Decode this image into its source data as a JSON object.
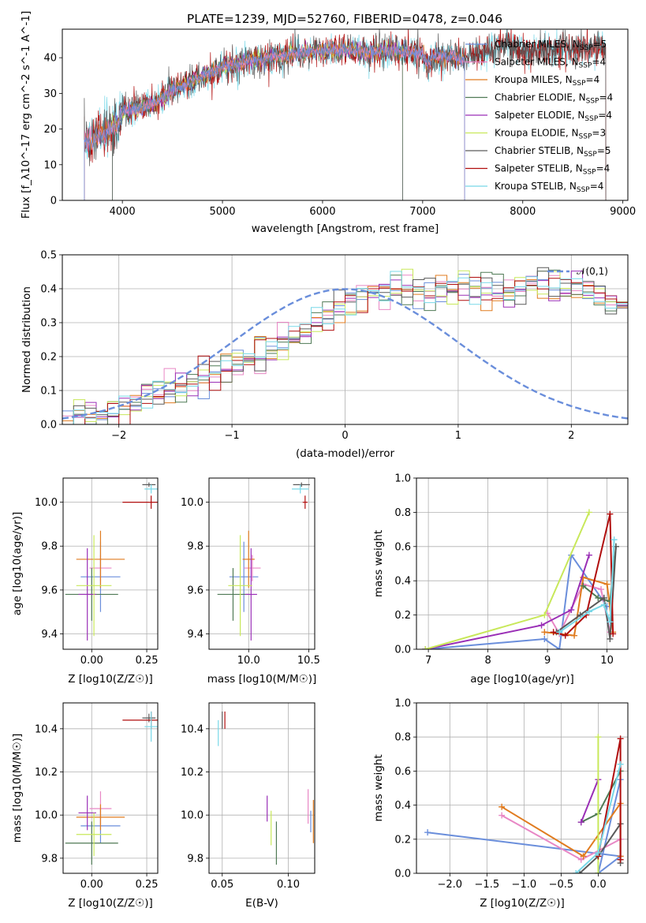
{
  "figure": {
    "title": "PLATE=1239, MJD=52760, FIBERID=0478, z=0.046"
  },
  "colors": {
    "Chabrier MILES": "#6a8edb",
    "Salpeter MILES": "#e887c5",
    "Kroupa MILES": "#e07b1f",
    "Chabrier ELODIE": "#4f7a55",
    "Salpeter ELODIE": "#9a2fb6",
    "Kroupa ELODIE": "#c8e85a",
    "Chabrier STELIB": "#5a5a5a",
    "Salpeter STELIB": "#b00d0d",
    "Kroupa STELIB": "#78d8e8"
  },
  "chart_data": [
    {
      "id": "spectrum",
      "type": "line",
      "xlabel": "wavelength [Angstrom, rest frame]",
      "ylabel": "Flux [f_λ10^-17 erg cm^-2 s^-1 A^-1]",
      "xlim": [
        3400,
        9050
      ],
      "ylim": [
        0,
        48
      ],
      "xticks": [
        4000,
        5000,
        6000,
        7000,
        8000,
        9000
      ],
      "yticks": [
        0,
        10,
        20,
        30,
        40
      ],
      "grid": false,
      "legend_position": "right",
      "legend": [
        {
          "model": "Chabrier MILES",
          "n_ssp": "5"
        },
        {
          "model": "Salpeter MILES",
          "n_ssp": "4"
        },
        {
          "model": "Kroupa MILES",
          "n_ssp": "4"
        },
        {
          "model": "Chabrier ELODIE",
          "n_ssp": "4"
        },
        {
          "model": "Salpeter ELODIE",
          "n_ssp": "4"
        },
        {
          "model": "Kroupa ELODIE",
          "n_ssp": "3"
        },
        {
          "model": "Chabrier STELIB",
          "n_ssp": "5"
        },
        {
          "model": "Salpeter STELIB",
          "n_ssp": "4"
        },
        {
          "model": "Kroupa STELIB",
          "n_ssp": "4"
        }
      ],
      "data_continuum": [
        [
          3620,
          16
        ],
        [
          3700,
          17
        ],
        [
          3800,
          18
        ],
        [
          3900,
          20
        ],
        [
          3950,
          21
        ],
        [
          4000,
          25
        ],
        [
          4100,
          25.5
        ],
        [
          4200,
          26
        ],
        [
          4300,
          27
        ],
        [
          4400,
          28.5
        ],
        [
          4500,
          31
        ],
        [
          4600,
          32
        ],
        [
          4700,
          33.5
        ],
        [
          4800,
          35
        ],
        [
          4900,
          36
        ],
        [
          5000,
          37.5
        ],
        [
          5100,
          38
        ],
        [
          5200,
          38.5
        ],
        [
          5300,
          39.5
        ],
        [
          5400,
          39.5
        ],
        [
          5500,
          40.5
        ],
        [
          5600,
          40.5
        ],
        [
          5700,
          41
        ],
        [
          5800,
          41.5
        ],
        [
          5900,
          41.5
        ],
        [
          6000,
          42
        ],
        [
          6100,
          42
        ],
        [
          6200,
          42
        ],
        [
          6300,
          42
        ],
        [
          6400,
          41.5
        ],
        [
          6500,
          41.5
        ],
        [
          6600,
          42
        ],
        [
          6700,
          42
        ],
        [
          6800,
          41.5
        ],
        [
          6900,
          41.5
        ],
        [
          7000,
          41
        ],
        [
          7050,
          38
        ],
        [
          7100,
          40
        ],
        [
          7200,
          40.5
        ],
        [
          7300,
          40.5
        ],
        [
          7400,
          39.5
        ],
        [
          7500,
          40.5
        ],
        [
          7600,
          41
        ],
        [
          7700,
          43
        ],
        [
          7800,
          44
        ],
        [
          7900,
          43
        ],
        [
          8000,
          42
        ],
        [
          8100,
          42
        ],
        [
          8200,
          42
        ],
        [
          8300,
          42.5
        ],
        [
          8400,
          43
        ],
        [
          8500,
          43
        ],
        [
          8600,
          43
        ],
        [
          8700,
          43
        ],
        [
          8800,
          43
        ]
      ],
      "model_wavelength_coverage": {
        "MILES": [
          3620,
          7420
        ],
        "ELODIE": [
          3900,
          6800
        ],
        "STELIB": [
          3620,
          8830
        ]
      }
    },
    {
      "id": "residuals",
      "type": "histogram",
      "xlabel": "(data-model)/error",
      "ylabel": "Normed distribution",
      "xlim": [
        -2.5,
        2.5
      ],
      "ylim": [
        0,
        0.5
      ],
      "xticks": [
        -2,
        -1,
        0,
        1,
        2
      ],
      "yticks": [
        0.0,
        0.1,
        0.2,
        0.3,
        0.4,
        0.5
      ],
      "grid": true,
      "legend_position": "top-right",
      "reference_curve": {
        "label": "𝒩(0,1)",
        "mean": 0,
        "sigma": 1,
        "color": "#6a8edb"
      },
      "bin_width": 0.1,
      "bin_start": -2.5,
      "base_profile": [
        0.03,
        0.03,
        0.035,
        0.04,
        0.045,
        0.05,
        0.06,
        0.08,
        0.09,
        0.1,
        0.11,
        0.12,
        0.13,
        0.15,
        0.16,
        0.18,
        0.19,
        0.21,
        0.22,
        0.24,
        0.26,
        0.28,
        0.3,
        0.32,
        0.34,
        0.36,
        0.38,
        0.39,
        0.39,
        0.4,
        0.4,
        0.39,
        0.38,
        0.4,
        0.41,
        0.41,
        0.4,
        0.4,
        0.39,
        0.38,
        0.4,
        0.42,
        0.42,
        0.41,
        0.4,
        0.4,
        0.39,
        0.38,
        0.36,
        0.35,
        0.34,
        0.32,
        0.31,
        0.29,
        0.27,
        0.26,
        0.24,
        0.22,
        0.21,
        0.19,
        0.18,
        0.17,
        0.16,
        0.15,
        0.14,
        0.13,
        0.12,
        0.11,
        0.1,
        0.09,
        0.08,
        0.07,
        0.06,
        0.05,
        0.05,
        0.04,
        0.035,
        0.03,
        0.03,
        0.025,
        0.02,
        0.02,
        0.02,
        0.02,
        0.02,
        0.02,
        0.02,
        0.02,
        0.02,
        0.02,
        0.02,
        0.02,
        0.02,
        0.02,
        0.02,
        0.02,
        0.02,
        0.02,
        0.02,
        0.02
      ]
    },
    {
      "id": "age-vs-metallicity",
      "type": "scatter",
      "xlabel": "Z [log10(Z/Z☉)]",
      "ylabel": "age [log10(age/yr)]",
      "xlim": [
        -0.13,
        0.3
      ],
      "ylim": [
        9.33,
        10.11
      ],
      "xticks": [
        0.0,
        0.25
      ],
      "yticks": [
        9.4,
        9.6,
        9.8,
        10.0
      ],
      "grid": true,
      "points": [
        {
          "model": "Chabrier MILES",
          "x": 0.04,
          "y": 9.66,
          "xerr": 0.09,
          "yerr": 0.16
        },
        {
          "model": "Salpeter MILES",
          "x": 0.04,
          "y": 9.7,
          "xerr": 0.05,
          "yerr": 0.06
        },
        {
          "model": "Kroupa MILES",
          "x": 0.04,
          "y": 9.74,
          "xerr": 0.11,
          "yerr": 0.13
        },
        {
          "model": "Chabrier ELODIE",
          "x": 0.0,
          "y": 9.58,
          "xerr": 0.12,
          "yerr": 0.12
        },
        {
          "model": "Salpeter ELODIE",
          "x": -0.02,
          "y": 9.58,
          "xerr": 0.04,
          "yerr": 0.21
        },
        {
          "model": "Kroupa ELODIE",
          "x": 0.01,
          "y": 9.62,
          "xerr": 0.08,
          "yerr": 0.23
        },
        {
          "model": "Chabrier STELIB",
          "x": 0.26,
          "y": 10.08,
          "xerr": 0.03,
          "yerr": 0.01
        },
        {
          "model": "Salpeter STELIB",
          "x": 0.27,
          "y": 10.0,
          "xerr": 0.13,
          "yerr": 0.03
        },
        {
          "model": "Kroupa STELIB",
          "x": 0.27,
          "y": 10.06,
          "xerr": 0.03,
          "yerr": 0.02
        }
      ]
    },
    {
      "id": "age-vs-mass",
      "type": "scatter",
      "xlabel": "mass [log10(M/M☉)]",
      "ylabel": "",
      "xlim": [
        9.67,
        10.55
      ],
      "ylim": [
        9.33,
        10.11
      ],
      "xticks": [
        10.0,
        10.5
      ],
      "yticks": [
        9.4,
        9.6,
        9.8,
        10.0
      ],
      "grid": true,
      "points": [
        {
          "model": "Chabrier MILES",
          "x": 9.96,
          "y": 9.66,
          "xerr": 0.12,
          "yerr": 0.16
        },
        {
          "model": "Salpeter MILES",
          "x": 10.03,
          "y": 9.7,
          "xerr": 0.07,
          "yerr": 0.06
        },
        {
          "model": "Kroupa MILES",
          "x": 10.0,
          "y": 9.74,
          "xerr": 0.05,
          "yerr": 0.13
        },
        {
          "model": "Chabrier ELODIE",
          "x": 9.87,
          "y": 9.58,
          "xerr": 0.13,
          "yerr": 0.12
        },
        {
          "model": "Salpeter ELODIE",
          "x": 10.02,
          "y": 9.58,
          "xerr": 0.05,
          "yerr": 0.21
        },
        {
          "model": "Kroupa ELODIE",
          "x": 9.93,
          "y": 9.62,
          "xerr": 0.1,
          "yerr": 0.23
        },
        {
          "model": "Chabrier STELIB",
          "x": 10.44,
          "y": 10.08,
          "xerr": 0.07,
          "yerr": 0.01
        },
        {
          "model": "Salpeter STELIB",
          "x": 10.47,
          "y": 10.0,
          "xerr": 0.02,
          "yerr": 0.03
        },
        {
          "model": "Kroupa STELIB",
          "x": 10.43,
          "y": 10.06,
          "xerr": 0.07,
          "yerr": 0.02
        }
      ]
    },
    {
      "id": "mass-weight-vs-age",
      "type": "line",
      "xlabel": "age [log10(age/yr)]",
      "ylabel": "mass weight",
      "xlim": [
        6.8,
        10.35
      ],
      "ylim": [
        0,
        1.0
      ],
      "xticks": [
        7,
        8,
        9,
        10
      ],
      "yticks": [
        0.0,
        0.2,
        0.4,
        0.6,
        0.8,
        1.0
      ],
      "grid": true,
      "series": [
        {
          "model": "Chabrier MILES",
          "x": [
            6.95,
            8.95,
            9.2,
            9.4,
            10.0
          ],
          "y": [
            0.0,
            0.06,
            0.0,
            0.55,
            0.25
          ]
        },
        {
          "model": "Salpeter MILES",
          "x": [
            9.0,
            9.2,
            9.6,
            9.9,
            10.05
          ],
          "y": [
            0.21,
            0.09,
            0.38,
            0.35,
            0.1
          ]
        },
        {
          "model": "Kroupa MILES",
          "x": [
            8.95,
            9.45,
            9.6,
            10.0,
            10.1
          ],
          "y": [
            0.1,
            0.08,
            0.42,
            0.38,
            0.1
          ]
        },
        {
          "model": "Chabrier ELODIE",
          "x": [
            9.6,
            9.85,
            10.05,
            10.15
          ],
          "y": [
            0.37,
            0.3,
            0.28,
            0.6
          ]
        },
        {
          "model": "Salpeter ELODIE",
          "x": [
            6.95,
            8.9,
            9.4,
            9.7
          ],
          "y": [
            0.0,
            0.14,
            0.23,
            0.55
          ]
        },
        {
          "model": "Kroupa ELODIE",
          "x": [
            6.95,
            8.95,
            9.7
          ],
          "y": [
            0.0,
            0.2,
            0.8
          ]
        },
        {
          "model": "Chabrier STELIB",
          "x": [
            9.15,
            9.55,
            9.95,
            10.05,
            10.15
          ],
          "y": [
            0.1,
            0.2,
            0.3,
            0.06,
            0.6
          ]
        },
        {
          "model": "Salpeter STELIB",
          "x": [
            9.1,
            9.3,
            9.65,
            10.05,
            10.1
          ],
          "y": [
            0.1,
            0.08,
            0.2,
            0.79,
            0.09
          ]
        },
        {
          "model": "Kroupa STELIB",
          "x": [
            9.2,
            9.7,
            9.95,
            10.05,
            10.12
          ],
          "y": [
            0.1,
            0.22,
            0.26,
            0.16,
            0.64
          ]
        }
      ]
    },
    {
      "id": "mass-vs-metallicity",
      "type": "scatter",
      "xlabel": "Z [log10(Z/Z☉)]",
      "ylabel": "mass [log10(M/M☉)]",
      "xlim": [
        -0.13,
        0.3
      ],
      "ylim": [
        9.73,
        10.52
      ],
      "xticks": [
        0.0,
        0.25
      ],
      "yticks": [
        9.8,
        10.0,
        10.2,
        10.4
      ],
      "grid": true,
      "points": [
        {
          "model": "Chabrier MILES",
          "x": 0.04,
          "y": 9.95,
          "xerr": 0.09,
          "yerr": 0.08
        },
        {
          "model": "Salpeter MILES",
          "x": 0.04,
          "y": 10.03,
          "xerr": 0.05,
          "yerr": 0.08
        },
        {
          "model": "Kroupa MILES",
          "x": 0.04,
          "y": 9.99,
          "xerr": 0.11,
          "yerr": 0.06
        },
        {
          "model": "Chabrier ELODIE",
          "x": 0.0,
          "y": 9.87,
          "xerr": 0.12,
          "yerr": 0.1
        },
        {
          "model": "Salpeter ELODIE",
          "x": -0.02,
          "y": 10.01,
          "xerr": 0.04,
          "yerr": 0.08
        },
        {
          "model": "Kroupa ELODIE",
          "x": 0.01,
          "y": 9.91,
          "xerr": 0.08,
          "yerr": 0.1
        },
        {
          "model": "Chabrier STELIB",
          "x": 0.26,
          "y": 10.45,
          "xerr": 0.03,
          "yerr": 0.02
        },
        {
          "model": "Salpeter STELIB",
          "x": 0.27,
          "y": 10.44,
          "xerr": 0.13,
          "yerr": 0.04
        },
        {
          "model": "Kroupa STELIB",
          "x": 0.27,
          "y": 10.41,
          "xerr": 0.03,
          "yerr": 0.07
        }
      ]
    },
    {
      "id": "mass-vs-extinction",
      "type": "scatter",
      "xlabel": "E(B-V)",
      "ylabel": "",
      "xlim": [
        0.04,
        0.12
      ],
      "ylim": [
        9.73,
        10.52
      ],
      "xticks": [
        0.05,
        0.1
      ],
      "yticks": [
        9.8,
        10.0,
        10.2,
        10.4
      ],
      "grid": true,
      "points": [
        {
          "model": "Chabrier MILES",
          "x": 0.117,
          "y": 9.97,
          "xerr": 0.0,
          "yerr": 0.05
        },
        {
          "model": "Salpeter MILES",
          "x": 0.115,
          "y": 10.04,
          "xerr": 0.0,
          "yerr": 0.08
        },
        {
          "model": "Kroupa MILES",
          "x": 0.119,
          "y": 9.97,
          "xerr": 0.0,
          "yerr": 0.1
        },
        {
          "model": "Chabrier ELODIE",
          "x": 0.091,
          "y": 9.87,
          "xerr": 0.0,
          "yerr": 0.1
        },
        {
          "model": "Salpeter ELODIE",
          "x": 0.084,
          "y": 10.03,
          "xerr": 0.0,
          "yerr": 0.06
        },
        {
          "model": "Kroupa ELODIE",
          "x": 0.087,
          "y": 9.94,
          "xerr": 0.0,
          "yerr": 0.08
        },
        {
          "model": "Chabrier STELIB",
          "x": 0.05,
          "y": 10.44,
          "xerr": 0.0,
          "yerr": 0.04
        },
        {
          "model": "Salpeter STELIB",
          "x": 0.052,
          "y": 10.44,
          "xerr": 0.0,
          "yerr": 0.04
        },
        {
          "model": "Kroupa STELIB",
          "x": 0.047,
          "y": 10.38,
          "xerr": 0.0,
          "yerr": 0.06
        }
      ]
    },
    {
      "id": "mass-weight-vs-metallicity",
      "type": "line",
      "xlabel": "Z [log10(Z/Z☉)]",
      "ylabel": "mass weight",
      "xlim": [
        -2.45,
        0.4
      ],
      "ylim": [
        0,
        1.0
      ],
      "xticks": [
        -2.0,
        -1.5,
        -1.0,
        -0.5,
        0.0
      ],
      "yticks": [
        0.0,
        0.2,
        0.4,
        0.6,
        0.8,
        1.0
      ],
      "grid": true,
      "series": [
        {
          "model": "Chabrier MILES",
          "x": [
            -2.3,
            0.3,
            0.0,
            0.3
          ],
          "y": [
            0.24,
            0.1,
            0.0,
            0.55
          ]
        },
        {
          "model": "Salpeter MILES",
          "x": [
            -1.3,
            -0.23,
            0.3,
            0.3
          ],
          "y": [
            0.34,
            0.08,
            0.2,
            0.1
          ]
        },
        {
          "model": "Kroupa MILES",
          "x": [
            -1.3,
            -0.2,
            0.3,
            0.3
          ],
          "y": [
            0.39,
            0.1,
            0.41,
            0.1
          ]
        },
        {
          "model": "Chabrier ELODIE",
          "x": [
            -0.23,
            0.0,
            0.3
          ],
          "y": [
            0.3,
            0.35,
            0.6
          ]
        },
        {
          "model": "Salpeter ELODIE",
          "x": [
            -0.23,
            0.0
          ],
          "y": [
            0.3,
            0.55
          ]
        },
        {
          "model": "Kroupa ELODIE",
          "x": [
            0.0,
            0.0,
            0.0
          ],
          "y": [
            0.8,
            0.2,
            0.0
          ]
        },
        {
          "model": "Chabrier STELIB",
          "x": [
            -0.25,
            0.0,
            0.3,
            0.3
          ],
          "y": [
            0.0,
            0.1,
            0.29,
            0.06
          ]
        },
        {
          "model": "Salpeter STELIB",
          "x": [
            0.0,
            0.3,
            0.3
          ],
          "y": [
            0.1,
            0.79,
            0.08
          ]
        },
        {
          "model": "Kroupa STELIB",
          "x": [
            -0.3,
            0.0,
            0.3
          ],
          "y": [
            0.0,
            0.12,
            0.64
          ]
        }
      ]
    }
  ]
}
